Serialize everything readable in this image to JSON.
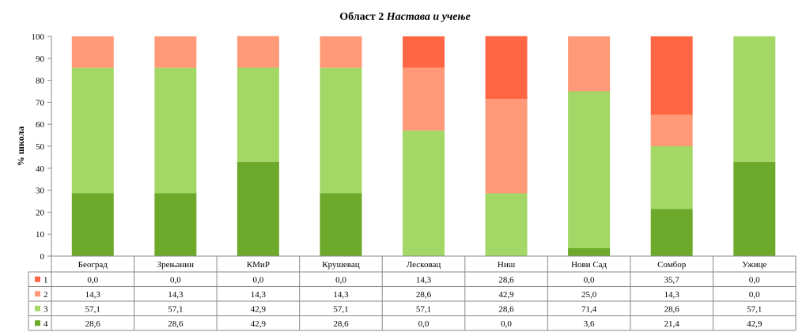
{
  "chart_data": {
    "type": "bar",
    "stacked": true,
    "title_plain": "Област 2 ",
    "title_italic": "Настава и учење",
    "ylabel": "% школа",
    "ylim": [
      0,
      100
    ],
    "yticks": [
      0,
      10,
      20,
      30,
      40,
      50,
      60,
      70,
      80,
      90,
      100
    ],
    "grid": false,
    "legend": "data-table-left",
    "categories": [
      "Београд",
      "Зрењанин",
      "КМиР",
      "Крушевац",
      "Лесковац",
      "Ниш",
      "Нови Сад",
      "Сомбор",
      "Ужице"
    ],
    "series": [
      {
        "name": "1",
        "color": "#FF6644",
        "values": [
          0.0,
          0.0,
          0.0,
          0.0,
          14.3,
          28.6,
          0.0,
          35.7,
          0.0
        ]
      },
      {
        "name": "2",
        "color": "#FF9977",
        "values": [
          14.3,
          14.3,
          14.3,
          14.3,
          28.6,
          42.9,
          25.0,
          14.3,
          0.0
        ]
      },
      {
        "name": "3",
        "color": "#A3D766",
        "values": [
          57.1,
          57.1,
          42.9,
          57.1,
          57.1,
          28.6,
          71.4,
          28.6,
          57.1
        ]
      },
      {
        "name": "4",
        "color": "#6DAA2C",
        "values": [
          28.6,
          28.6,
          42.9,
          28.6,
          0.0,
          0.0,
          3.6,
          21.4,
          42.9
        ]
      }
    ]
  }
}
